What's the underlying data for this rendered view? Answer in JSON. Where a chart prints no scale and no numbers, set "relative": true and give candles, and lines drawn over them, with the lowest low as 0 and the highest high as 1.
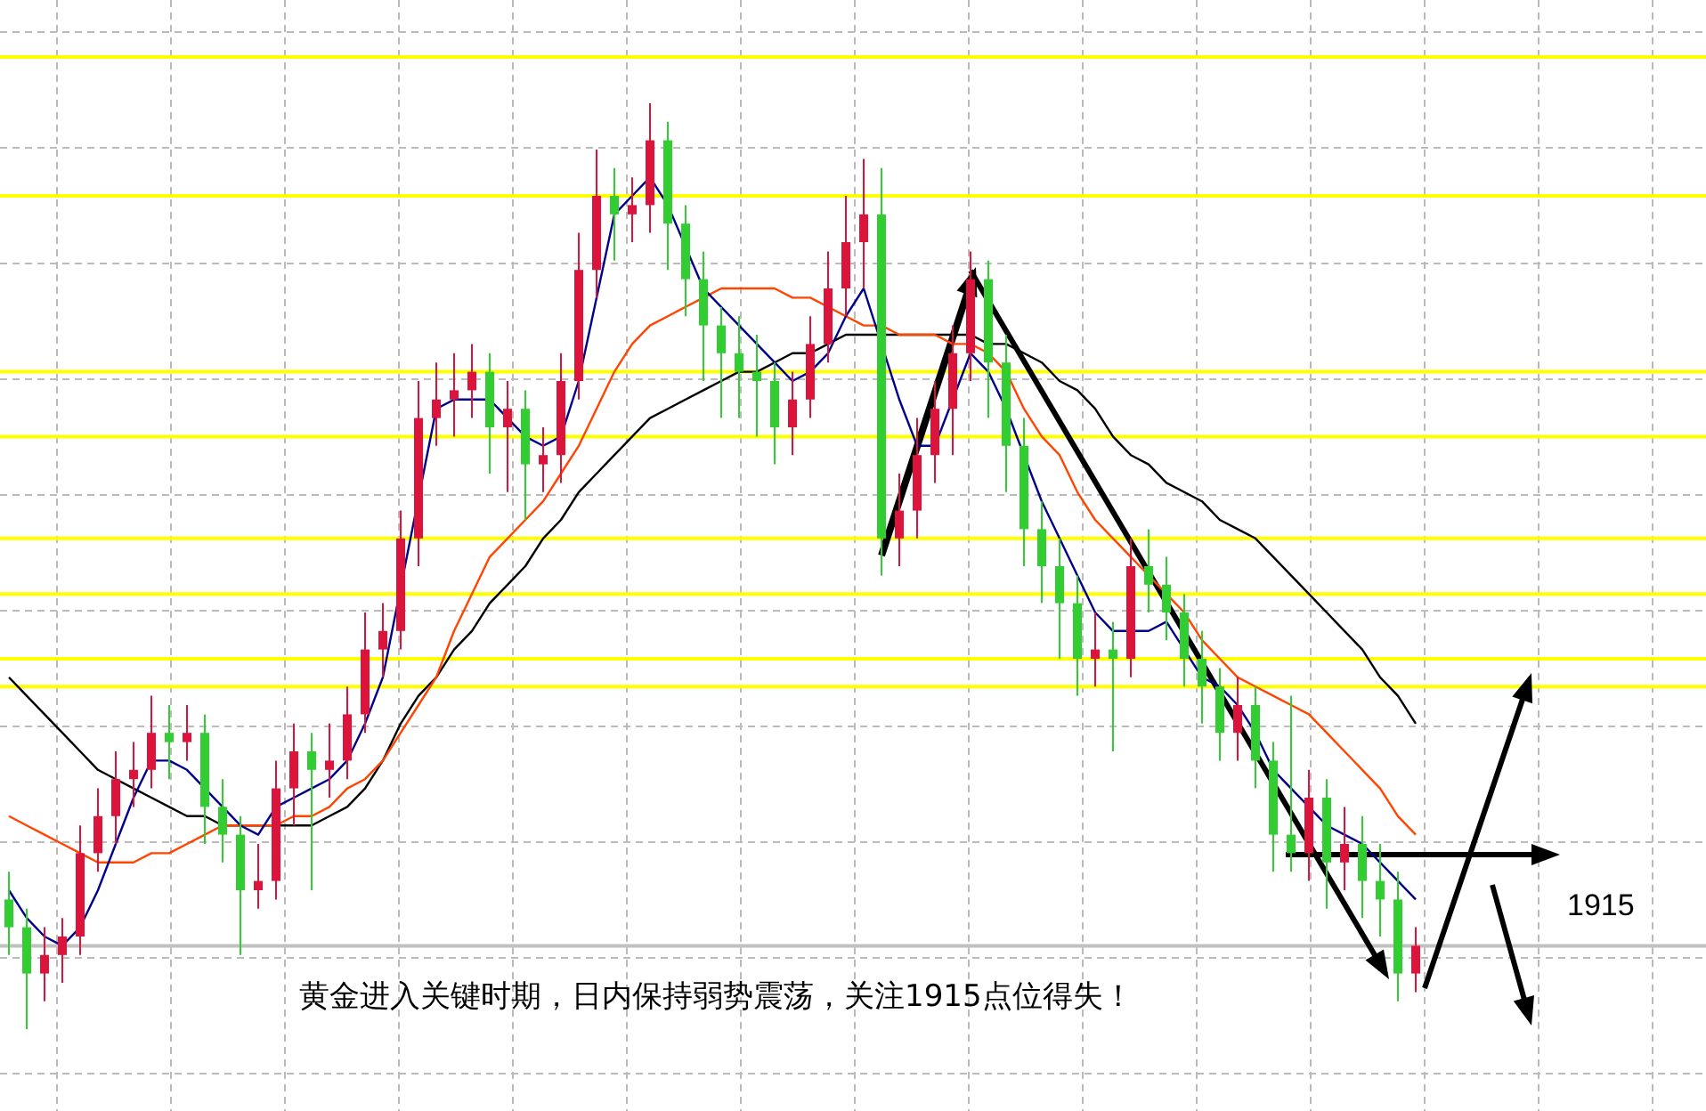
{
  "chart_data": {
    "type": "candlestick",
    "relative": true,
    "grid": true,
    "categories": [
      null,
      null,
      null,
      null,
      null,
      null,
      null,
      null,
      null,
      null,
      null,
      null,
      null,
      null,
      null,
      null,
      null,
      null,
      null,
      null,
      null,
      null,
      null,
      null,
      null,
      null,
      null,
      null,
      null,
      null,
      null,
      null,
      null,
      null,
      null,
      null,
      null,
      null,
      null,
      null,
      null,
      null,
      null,
      null,
      null,
      null,
      null,
      null,
      null,
      null,
      null,
      null,
      null,
      null,
      null,
      null,
      null,
      null,
      null,
      null,
      null,
      null,
      null,
      null,
      null,
      null,
      null,
      null,
      null,
      null,
      null,
      null,
      null,
      null,
      null,
      null,
      null,
      null,
      null,
      null
    ],
    "ohlc": [
      [
        0.14,
        0.17,
        0.08,
        0.11
      ],
      [
        0.11,
        0.13,
        0.0,
        0.06
      ],
      [
        0.06,
        0.11,
        0.03,
        0.08
      ],
      [
        0.08,
        0.12,
        0.05,
        0.1
      ],
      [
        0.1,
        0.22,
        0.08,
        0.19
      ],
      [
        0.19,
        0.26,
        0.17,
        0.23
      ],
      [
        0.23,
        0.3,
        0.2,
        0.27
      ],
      [
        0.27,
        0.31,
        0.24,
        0.28
      ],
      [
        0.28,
        0.36,
        0.26,
        0.32
      ],
      [
        0.32,
        0.35,
        0.27,
        0.31
      ],
      [
        0.31,
        0.35,
        0.29,
        0.32
      ],
      [
        0.32,
        0.34,
        0.2,
        0.24
      ],
      [
        0.24,
        0.27,
        0.18,
        0.21
      ],
      [
        0.21,
        0.23,
        0.08,
        0.15
      ],
      [
        0.15,
        0.2,
        0.13,
        0.16
      ],
      [
        0.16,
        0.29,
        0.14,
        0.26
      ],
      [
        0.26,
        0.33,
        0.22,
        0.3
      ],
      [
        0.3,
        0.32,
        0.15,
        0.28
      ],
      [
        0.28,
        0.33,
        0.25,
        0.29
      ],
      [
        0.29,
        0.37,
        0.27,
        0.34
      ],
      [
        0.34,
        0.45,
        0.32,
        0.41
      ],
      [
        0.41,
        0.46,
        0.38,
        0.43
      ],
      [
        0.43,
        0.56,
        0.41,
        0.53
      ],
      [
        0.53,
        0.7,
        0.5,
        0.66
      ],
      [
        0.66,
        0.72,
        0.63,
        0.68
      ],
      [
        0.68,
        0.73,
        0.64,
        0.69
      ],
      [
        0.69,
        0.74,
        0.66,
        0.71
      ],
      [
        0.71,
        0.73,
        0.6,
        0.65
      ],
      [
        0.65,
        0.7,
        0.58,
        0.67
      ],
      [
        0.67,
        0.69,
        0.55,
        0.61
      ],
      [
        0.61,
        0.65,
        0.58,
        0.62
      ],
      [
        0.62,
        0.73,
        0.59,
        0.7
      ],
      [
        0.7,
        0.86,
        0.68,
        0.82
      ],
      [
        0.82,
        0.95,
        0.79,
        0.9
      ],
      [
        0.9,
        0.93,
        0.83,
        0.88
      ],
      [
        0.88,
        0.92,
        0.85,
        0.89
      ],
      [
        0.89,
        1.0,
        0.86,
        0.96
      ],
      [
        0.96,
        0.98,
        0.82,
        0.87
      ],
      [
        0.87,
        0.89,
        0.77,
        0.81
      ],
      [
        0.81,
        0.84,
        0.7,
        0.76
      ],
      [
        0.76,
        0.78,
        0.66,
        0.73
      ],
      [
        0.73,
        0.77,
        0.66,
        0.71
      ],
      [
        0.71,
        0.75,
        0.64,
        0.7
      ],
      [
        0.7,
        0.72,
        0.61,
        0.65
      ],
      [
        0.65,
        0.71,
        0.62,
        0.68
      ],
      [
        0.68,
        0.77,
        0.66,
        0.74
      ],
      [
        0.74,
        0.84,
        0.72,
        0.8
      ],
      [
        0.8,
        0.9,
        0.77,
        0.85
      ],
      [
        0.85,
        0.94,
        0.8,
        0.88
      ],
      [
        0.88,
        0.93,
        0.49,
        0.53
      ],
      [
        0.53,
        0.6,
        0.5,
        0.56
      ],
      [
        0.56,
        0.66,
        0.53,
        0.62
      ],
      [
        0.62,
        0.7,
        0.59,
        0.67
      ],
      [
        0.67,
        0.76,
        0.62,
        0.73
      ],
      [
        0.73,
        0.84,
        0.7,
        0.81
      ],
      [
        0.81,
        0.83,
        0.66,
        0.72
      ],
      [
        0.72,
        0.75,
        0.58,
        0.63
      ],
      [
        0.63,
        0.66,
        0.5,
        0.54
      ],
      [
        0.54,
        0.57,
        0.46,
        0.5
      ],
      [
        0.5,
        0.53,
        0.4,
        0.46
      ],
      [
        0.46,
        0.49,
        0.36,
        0.4
      ],
      [
        0.4,
        0.45,
        0.37,
        0.41
      ],
      [
        0.41,
        0.44,
        0.3,
        0.4
      ],
      [
        0.4,
        0.53,
        0.38,
        0.5
      ],
      [
        0.5,
        0.54,
        0.45,
        0.48
      ],
      [
        0.48,
        0.51,
        0.42,
        0.45
      ],
      [
        0.45,
        0.47,
        0.37,
        0.4
      ],
      [
        0.4,
        0.43,
        0.33,
        0.37
      ],
      [
        0.37,
        0.39,
        0.29,
        0.32
      ],
      [
        0.32,
        0.38,
        0.29,
        0.35
      ],
      [
        0.35,
        0.37,
        0.26,
        0.29
      ],
      [
        0.29,
        0.31,
        0.17,
        0.21
      ],
      [
        0.21,
        0.36,
        0.17,
        0.19
      ],
      [
        0.19,
        0.28,
        0.16,
        0.25
      ],
      [
        0.25,
        0.27,
        0.13,
        0.18
      ],
      [
        0.18,
        0.24,
        0.15,
        0.2
      ],
      [
        0.2,
        0.23,
        0.12,
        0.16
      ],
      [
        0.16,
        0.2,
        0.1,
        0.14
      ],
      [
        0.14,
        0.17,
        0.03,
        0.06
      ],
      [
        0.06,
        0.11,
        0.04,
        0.09
      ]
    ],
    "series": [
      {
        "type": "line",
        "color": "#000000",
        "values": [
          0.38,
          0.36,
          0.34,
          0.32,
          0.3,
          0.28,
          0.27,
          0.26,
          0.25,
          0.24,
          0.23,
          0.23,
          0.22,
          0.22,
          0.22,
          0.22,
          0.22,
          0.22,
          0.23,
          0.24,
          0.26,
          0.29,
          0.33,
          0.36,
          0.38,
          0.41,
          0.43,
          0.46,
          0.48,
          0.5,
          0.53,
          0.55,
          0.58,
          0.6,
          0.62,
          0.64,
          0.66,
          0.67,
          0.68,
          0.69,
          0.7,
          0.71,
          0.71,
          0.72,
          0.73,
          0.73,
          0.74,
          0.75,
          0.75,
          0.75,
          0.75,
          0.75,
          0.75,
          0.75,
          0.75,
          0.74,
          0.74,
          0.73,
          0.72,
          0.7,
          0.69,
          0.67,
          0.64,
          0.62,
          0.61,
          0.59,
          0.58,
          0.57,
          0.55,
          0.54,
          0.53,
          0.51,
          0.49,
          0.47,
          0.45,
          0.43,
          0.41,
          0.38,
          0.36,
          0.33
        ]
      },
      {
        "type": "line",
        "color": "#ff4500",
        "values": [
          0.23,
          0.22,
          0.21,
          0.2,
          0.19,
          0.18,
          0.18,
          0.18,
          0.19,
          0.19,
          0.2,
          0.21,
          0.22,
          0.22,
          0.22,
          0.22,
          0.23,
          0.23,
          0.24,
          0.26,
          0.27,
          0.29,
          0.32,
          0.35,
          0.38,
          0.43,
          0.47,
          0.51,
          0.53,
          0.55,
          0.57,
          0.6,
          0.63,
          0.67,
          0.71,
          0.74,
          0.76,
          0.77,
          0.78,
          0.79,
          0.8,
          0.8,
          0.8,
          0.8,
          0.79,
          0.79,
          0.78,
          0.77,
          0.76,
          0.76,
          0.75,
          0.75,
          0.75,
          0.74,
          0.74,
          0.73,
          0.71,
          0.67,
          0.64,
          0.62,
          0.58,
          0.55,
          0.53,
          0.51,
          0.49,
          0.47,
          0.45,
          0.42,
          0.4,
          0.38,
          0.37,
          0.36,
          0.35,
          0.34,
          0.32,
          0.3,
          0.28,
          0.26,
          0.23,
          0.21
        ]
      },
      {
        "type": "line",
        "color": "#00008b",
        "values": [
          0.15,
          0.12,
          0.1,
          0.09,
          0.11,
          0.15,
          0.2,
          0.25,
          0.29,
          0.29,
          0.28,
          0.26,
          0.24,
          0.22,
          0.21,
          0.24,
          0.25,
          0.26,
          0.27,
          0.29,
          0.33,
          0.38,
          null,
          null,
          0.67,
          0.68,
          0.68,
          0.68,
          0.66,
          0.64,
          0.63,
          0.64,
          0.7,
          0.79,
          0.88,
          0.9,
          0.92,
          0.89,
          null,
          0.8,
          0.78,
          0.76,
          0.74,
          0.72,
          0.7,
          0.71,
          0.73,
          0.77,
          0.8,
          null,
          0.68,
          0.63,
          0.63,
          null,
          0.73,
          0.71,
          0.67,
          null,
          0.57,
          0.53,
          0.49,
          0.45,
          0.43,
          0.43,
          0.43,
          0.44,
          0.41,
          0.38,
          0.37,
          0.35,
          0.32,
          0.28,
          0.26,
          0.24,
          0.22,
          0.21,
          0.2,
          0.18,
          0.16,
          0.14
        ]
      }
    ],
    "ref_lines": [
      {
        "axis": "y",
        "value": 1.05,
        "color": "#ffff00"
      },
      {
        "axis": "y",
        "value": 0.9,
        "color": "#ffff00"
      },
      {
        "axis": "y",
        "value": 0.71,
        "color": "#ffff00"
      },
      {
        "axis": "y",
        "value": 0.64,
        "color": "#ffff00"
      },
      {
        "axis": "y",
        "value": 0.53,
        "color": "#ffff00"
      },
      {
        "axis": "y",
        "value": 0.47,
        "color": "#ffff00"
      },
      {
        "axis": "y",
        "value": 0.4,
        "color": "#ffff00"
      },
      {
        "axis": "y",
        "value": 0.37,
        "color": "#ffff00"
      },
      {
        "axis": "y",
        "value": 0.09,
        "color": "#c0c0c0"
      }
    ],
    "annotations": [
      "黄金进入关键时期，日内保持弱势震荡，关注1915点位得失！",
      "1915"
    ]
  }
}
